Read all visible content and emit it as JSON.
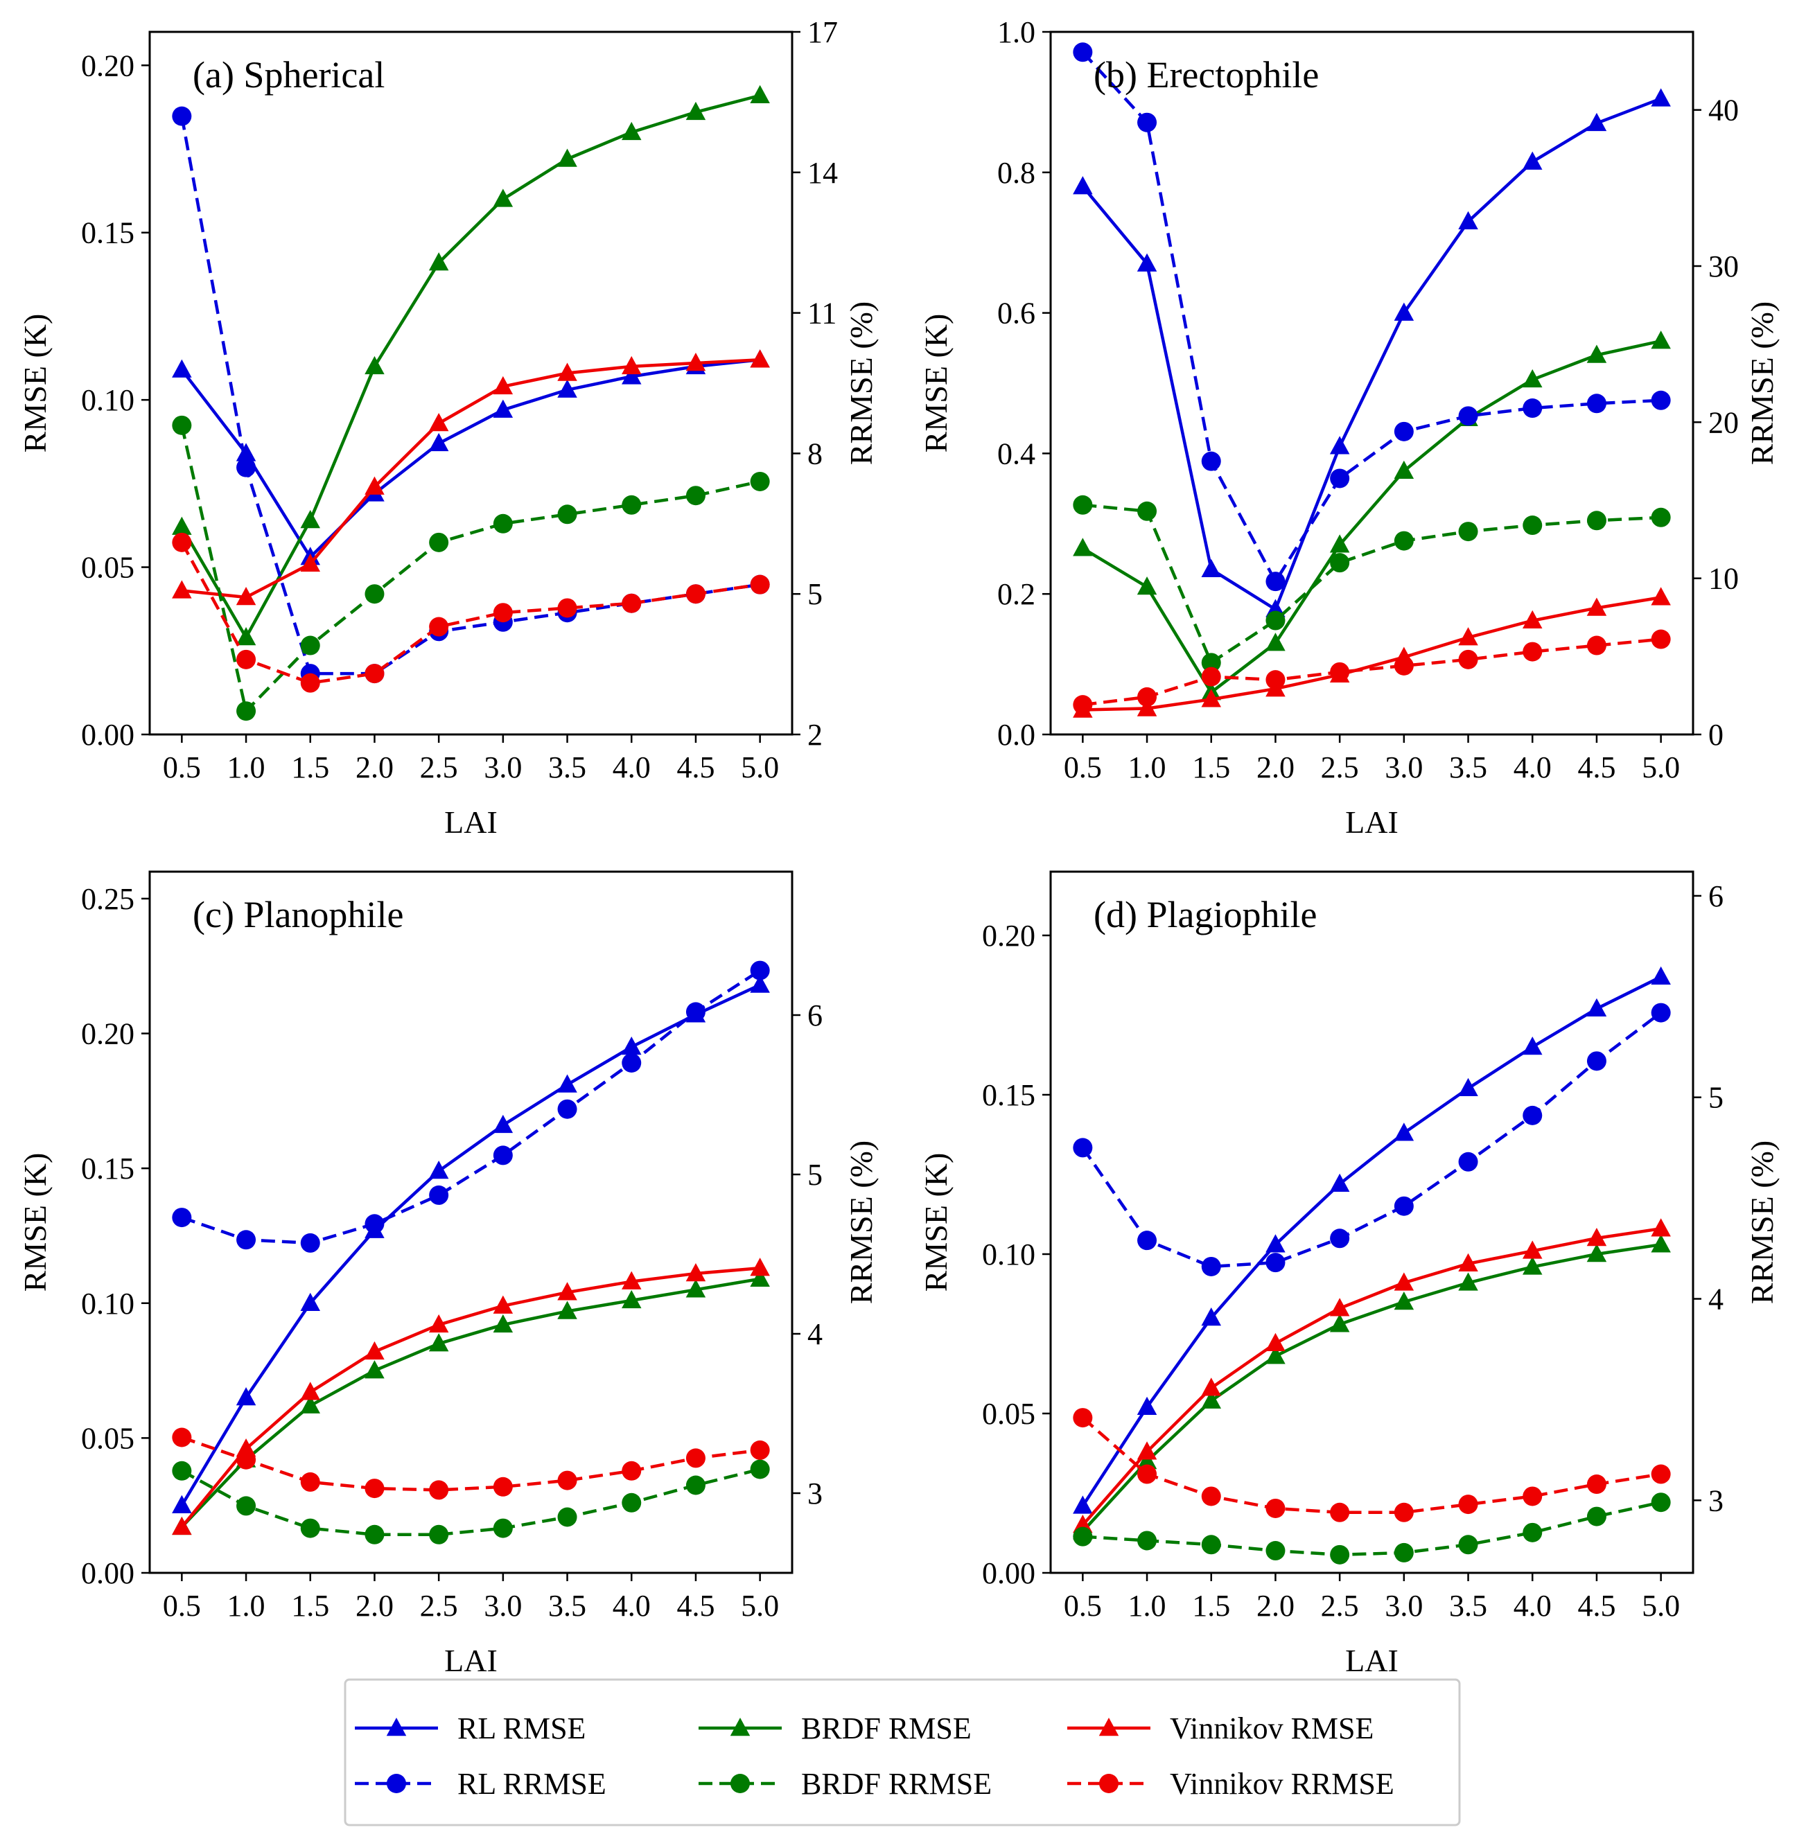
{
  "figure": {
    "colors": {
      "rl": "#0000dd",
      "brdf": "#007a00",
      "vinnikov": "#ee0000"
    }
  },
  "legend": {
    "entries": [
      {
        "label": "RL RMSE",
        "color": "#0000dd",
        "dashed": false,
        "marker": "triangle"
      },
      {
        "label": "RL RRMSE",
        "color": "#0000dd",
        "dashed": true,
        "marker": "circle"
      },
      {
        "label": "BRDF RMSE",
        "color": "#007a00",
        "dashed": false,
        "marker": "triangle"
      },
      {
        "label": "BRDF RRMSE",
        "color": "#007a00",
        "dashed": true,
        "marker": "circle"
      },
      {
        "label": "Vinnikov RMSE",
        "color": "#ee0000",
        "dashed": false,
        "marker": "triangle"
      },
      {
        "label": "Vinnikov RRMSE",
        "color": "#ee0000",
        "dashed": true,
        "marker": "circle"
      }
    ]
  },
  "chart_data": [
    {
      "type": "line",
      "title": "(a) Spherical",
      "xlabel": "LAI",
      "ylabel": "RMSE (K)",
      "ylabel_right": "RRMSE (%)",
      "x": [
        0.5,
        1.0,
        1.5,
        2.0,
        2.5,
        3.0,
        3.5,
        4.0,
        4.5,
        5.0
      ],
      "xticks": [
        "0.5",
        "1.0",
        "1.5",
        "2.0",
        "2.5",
        "3.0",
        "3.5",
        "4.0",
        "4.5",
        "5.0"
      ],
      "ylim": [
        0,
        0.21
      ],
      "yticks": [
        "0.00",
        "0.05",
        "0.10",
        "0.15",
        "0.20"
      ],
      "ylim_right": [
        2,
        17
      ],
      "yticks_right": [
        "2",
        "5",
        "8",
        "11",
        "14",
        "17"
      ],
      "series": [
        {
          "name": "RL RMSE",
          "axis": "left",
          "values": [
            0.109,
            0.084,
            0.053,
            0.072,
            0.087,
            0.097,
            0.103,
            0.107,
            0.11,
            0.112
          ]
        },
        {
          "name": "BRDF RMSE",
          "axis": "left",
          "values": [
            0.062,
            0.029,
            0.064,
            0.11,
            0.141,
            0.16,
            0.172,
            0.18,
            0.186,
            0.191
          ]
        },
        {
          "name": "Vinnikov RMSE",
          "axis": "left",
          "values": [
            0.043,
            0.041,
            0.051,
            0.074,
            0.093,
            0.104,
            0.108,
            0.11,
            0.111,
            0.112
          ]
        },
        {
          "name": "RL RRMSE",
          "axis": "right",
          "values": [
            15.2,
            7.7,
            3.3,
            3.3,
            4.2,
            4.4,
            4.6,
            4.8,
            5.0,
            5.2
          ]
        },
        {
          "name": "BRDF RRMSE",
          "axis": "right",
          "values": [
            8.6,
            2.5,
            3.9,
            5.0,
            6.1,
            6.5,
            6.7,
            6.9,
            7.1,
            7.4
          ]
        },
        {
          "name": "Vinnikov RRMSE",
          "axis": "right",
          "values": [
            6.1,
            3.6,
            3.1,
            3.3,
            4.3,
            4.6,
            4.7,
            4.8,
            5.0,
            5.2
          ]
        }
      ]
    },
    {
      "type": "line",
      "title": "(b) Erectophile",
      "xlabel": "LAI",
      "ylabel": "RMSE (K)",
      "ylabel_right": "RRMSE (%)",
      "x": [
        0.5,
        1.0,
        1.5,
        2.0,
        2.5,
        3.0,
        3.5,
        4.0,
        4.5,
        5.0
      ],
      "xticks": [
        "0.5",
        "1.0",
        "1.5",
        "2.0",
        "2.5",
        "3.0",
        "3.5",
        "4.0",
        "4.5",
        "5.0"
      ],
      "ylim": [
        0,
        1.0
      ],
      "yticks": [
        "0.0",
        "0.2",
        "0.4",
        "0.6",
        "0.8",
        "1.0"
      ],
      "ylim_right": [
        0,
        45
      ],
      "yticks_right": [
        "0",
        "10",
        "20",
        "30",
        "40"
      ],
      "series": [
        {
          "name": "RL RMSE",
          "axis": "left",
          "values": [
            0.78,
            0.67,
            0.235,
            0.178,
            0.41,
            0.6,
            0.73,
            0.815,
            0.87,
            0.905
          ]
        },
        {
          "name": "BRDF RMSE",
          "axis": "left",
          "values": [
            0.265,
            0.21,
            0.06,
            0.13,
            0.27,
            0.375,
            0.45,
            0.505,
            0.54,
            0.56
          ]
        },
        {
          "name": "Vinnikov RMSE",
          "axis": "left",
          "values": [
            0.035,
            0.037,
            0.05,
            0.065,
            0.085,
            0.11,
            0.138,
            0.162,
            0.18,
            0.195
          ]
        },
        {
          "name": "RL RRMSE",
          "axis": "right",
          "values": [
            43.7,
            39.2,
            17.5,
            9.8,
            16.4,
            19.4,
            20.4,
            20.9,
            21.2,
            21.4
          ]
        },
        {
          "name": "BRDF RRMSE",
          "axis": "right",
          "values": [
            14.7,
            14.3,
            4.6,
            7.3,
            11.0,
            12.4,
            13.0,
            13.4,
            13.7,
            13.9
          ]
        },
        {
          "name": "Vinnikov RRMSE",
          "axis": "right",
          "values": [
            1.9,
            2.4,
            3.7,
            3.5,
            4.0,
            4.4,
            4.8,
            5.3,
            5.7,
            6.1
          ]
        }
      ]
    },
    {
      "type": "line",
      "title": "(c) Planophile",
      "xlabel": "LAI",
      "ylabel": "RMSE (K)",
      "ylabel_right": "RRMSE (%)",
      "x": [
        0.5,
        1.0,
        1.5,
        2.0,
        2.5,
        3.0,
        3.5,
        4.0,
        4.5,
        5.0
      ],
      "xticks": [
        "0.5",
        "1.0",
        "1.5",
        "2.0",
        "2.5",
        "3.0",
        "3.5",
        "4.0",
        "4.5",
        "5.0"
      ],
      "ylim": [
        0,
        0.26
      ],
      "yticks": [
        "0.00",
        "0.05",
        "0.10",
        "0.15",
        "0.20",
        "0.25"
      ],
      "ylim_right": [
        2.5,
        6.9
      ],
      "yticks_right": [
        "3",
        "4",
        "5",
        "6"
      ],
      "series": [
        {
          "name": "RL RMSE",
          "axis": "left",
          "values": [
            0.025,
            0.065,
            0.1,
            0.127,
            0.149,
            0.166,
            0.181,
            0.195,
            0.207,
            0.218
          ]
        },
        {
          "name": "BRDF RMSE",
          "axis": "left",
          "values": [
            0.017,
            0.042,
            0.062,
            0.075,
            0.085,
            0.092,
            0.097,
            0.101,
            0.105,
            0.109
          ]
        },
        {
          "name": "Vinnikov RMSE",
          "axis": "left",
          "values": [
            0.017,
            0.046,
            0.067,
            0.082,
            0.092,
            0.099,
            0.104,
            0.108,
            0.111,
            0.113
          ]
        },
        {
          "name": "RL RRMSE",
          "axis": "right",
          "values": [
            4.73,
            4.59,
            4.57,
            4.69,
            4.87,
            5.12,
            5.41,
            5.7,
            6.02,
            6.28
          ]
        },
        {
          "name": "BRDF RRMSE",
          "axis": "right",
          "values": [
            3.14,
            2.92,
            2.78,
            2.74,
            2.74,
            2.78,
            2.85,
            2.94,
            3.05,
            3.15
          ]
        },
        {
          "name": "Vinnikov RRMSE",
          "axis": "right",
          "values": [
            3.35,
            3.21,
            3.07,
            3.03,
            3.02,
            3.04,
            3.08,
            3.14,
            3.22,
            3.27
          ]
        }
      ]
    },
    {
      "type": "line",
      "title": "(d) Plagiophile",
      "xlabel": "LAI",
      "ylabel": "RMSE (K)",
      "ylabel_right": "RRMSE (%)",
      "x": [
        0.5,
        1.0,
        1.5,
        2.0,
        2.5,
        3.0,
        3.5,
        4.0,
        4.5,
        5.0
      ],
      "xticks": [
        "0.5",
        "1.0",
        "1.5",
        "2.0",
        "2.5",
        "3.0",
        "3.5",
        "4.0",
        "4.5",
        "5.0"
      ],
      "ylim": [
        0,
        0.22
      ],
      "yticks": [
        "0.00",
        "0.05",
        "0.10",
        "0.15",
        "0.20"
      ],
      "ylim_right": [
        2.64,
        6.12
      ],
      "yticks_right": [
        "3",
        "4",
        "5",
        "6"
      ],
      "series": [
        {
          "name": "RL RMSE",
          "axis": "left",
          "values": [
            0.021,
            0.052,
            0.08,
            0.103,
            0.122,
            0.138,
            0.152,
            0.165,
            0.177,
            0.187
          ]
        },
        {
          "name": "BRDF RMSE",
          "axis": "left",
          "values": [
            0.013,
            0.035,
            0.054,
            0.068,
            0.078,
            0.085,
            0.091,
            0.096,
            0.1,
            0.103
          ]
        },
        {
          "name": "Vinnikov RMSE",
          "axis": "left",
          "values": [
            0.015,
            0.038,
            0.058,
            0.072,
            0.083,
            0.091,
            0.097,
            0.101,
            0.105,
            0.108
          ]
        },
        {
          "name": "RL RRMSE",
          "axis": "right",
          "values": [
            4.75,
            4.29,
            4.16,
            4.18,
            4.3,
            4.46,
            4.68,
            4.91,
            5.18,
            5.42
          ]
        },
        {
          "name": "BRDF RRMSE",
          "axis": "right",
          "values": [
            2.82,
            2.8,
            2.78,
            2.75,
            2.73,
            2.74,
            2.78,
            2.84,
            2.92,
            2.99
          ]
        },
        {
          "name": "Vinnikov RRMSE",
          "axis": "right",
          "values": [
            3.41,
            3.13,
            3.02,
            2.96,
            2.94,
            2.94,
            2.98,
            3.02,
            3.08,
            3.13
          ]
        }
      ]
    }
  ]
}
